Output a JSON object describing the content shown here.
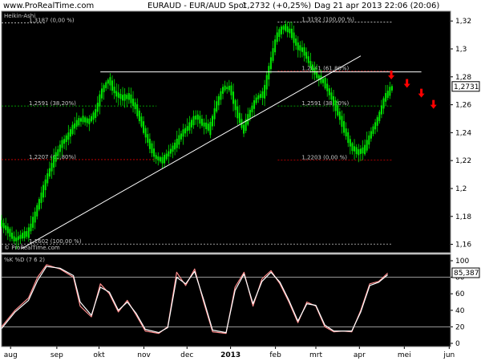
{
  "header": {
    "site": "www.ProRealTime.com",
    "instrument": "EURAUD - EUR/AUD Spot",
    "quote": "1,2732 (+0,25%)",
    "date": "Dag  21 apr 2013 22:06 (20:06)"
  },
  "chart_data": [
    {
      "type": "candlestick",
      "title": "Heikin-Ashi",
      "watermark": "© ProRealTime.com",
      "ylim": [
        1.154,
        1.327
      ],
      "y_ticks": [
        {
          "v": 1.32,
          "label": "1,32"
        },
        {
          "v": 1.3,
          "label": "1,3"
        },
        {
          "v": 1.28,
          "label": "1,28"
        },
        {
          "v": 1.26,
          "label": "1,26"
        },
        {
          "v": 1.24,
          "label": "1,24"
        },
        {
          "v": 1.22,
          "label": "1,22"
        },
        {
          "v": 1.2,
          "label": "1,2"
        },
        {
          "v": 1.18,
          "label": "1,18"
        },
        {
          "v": 1.16,
          "label": "1,16"
        }
      ],
      "price_tag": {
        "v": 1.2731,
        "label": "1,2731"
      },
      "x_months": [
        {
          "label": "aug",
          "frac": 0.02
        },
        {
          "label": "sep",
          "frac": 0.123
        },
        {
          "label": "okt",
          "frac": 0.217
        },
        {
          "label": "nov",
          "frac": 0.317
        },
        {
          "label": "dec",
          "frac": 0.413
        },
        {
          "label": "2013",
          "frac": 0.51
        },
        {
          "label": "feb",
          "frac": 0.61
        },
        {
          "label": "mrt",
          "frac": 0.7
        },
        {
          "label": "apr",
          "frac": 0.797
        },
        {
          "label": "mei",
          "frac": 0.897
        },
        {
          "label": "jun",
          "frac": 0.997
        }
      ],
      "price_path": [
        [
          0.0,
          1.175
        ],
        [
          0.015,
          1.17
        ],
        [
          0.03,
          1.163
        ],
        [
          0.045,
          1.166
        ],
        [
          0.06,
          1.168
        ],
        [
          0.075,
          1.18
        ],
        [
          0.09,
          1.195
        ],
        [
          0.105,
          1.21
        ],
        [
          0.12,
          1.222
        ],
        [
          0.135,
          1.232
        ],
        [
          0.15,
          1.238
        ],
        [
          0.165,
          1.246
        ],
        [
          0.18,
          1.25
        ],
        [
          0.195,
          1.248
        ],
        [
          0.21,
          1.254
        ],
        [
          0.225,
          1.27
        ],
        [
          0.24,
          1.278
        ],
        [
          0.255,
          1.268
        ],
        [
          0.27,
          1.265
        ],
        [
          0.285,
          1.266
        ],
        [
          0.3,
          1.258
        ],
        [
          0.315,
          1.245
        ],
        [
          0.33,
          1.232
        ],
        [
          0.345,
          1.222
        ],
        [
          0.36,
          1.22
        ],
        [
          0.375,
          1.226
        ],
        [
          0.39,
          1.232
        ],
        [
          0.405,
          1.24
        ],
        [
          0.42,
          1.245
        ],
        [
          0.435,
          1.252
        ],
        [
          0.45,
          1.246
        ],
        [
          0.465,
          1.243
        ],
        [
          0.48,
          1.26
        ],
        [
          0.495,
          1.272
        ],
        [
          0.51,
          1.272
        ],
        [
          0.525,
          1.255
        ],
        [
          0.54,
          1.242
        ],
        [
          0.555,
          1.255
        ],
        [
          0.57,
          1.265
        ],
        [
          0.585,
          1.268
        ],
        [
          0.6,
          1.29
        ],
        [
          0.615,
          1.31
        ],
        [
          0.63,
          1.316
        ],
        [
          0.645,
          1.312
        ],
        [
          0.66,
          1.302
        ],
        [
          0.675,
          1.298
        ],
        [
          0.69,
          1.288
        ],
        [
          0.705,
          1.28
        ],
        [
          0.72,
          1.276
        ],
        [
          0.735,
          1.266
        ],
        [
          0.75,
          1.255
        ],
        [
          0.765,
          1.242
        ],
        [
          0.78,
          1.23
        ],
        [
          0.795,
          1.226
        ],
        [
          0.81,
          1.228
        ],
        [
          0.825,
          1.24
        ],
        [
          0.84,
          1.25
        ],
        [
          0.855,
          1.265
        ],
        [
          0.87,
          1.272
        ]
      ],
      "fib_levels": [
        {
          "name": "fib-left-100",
          "v": 1.3187,
          "x1": 0.0,
          "x2": 0.1,
          "label": "1,3187 (0,00 %)",
          "color": "#c8c8c8"
        },
        {
          "name": "fib-left-382",
          "v": 1.2591,
          "x1": 0.0,
          "x2": 0.345,
          "label": "1,2591 (38,20%)",
          "color": "#00c800"
        },
        {
          "name": "fib-left-618",
          "v": 1.2207,
          "x1": 0.0,
          "x2": 0.345,
          "label": "1,2207 (61,80%)",
          "color": "#dc0000"
        },
        {
          "name": "fib-left-0",
          "v": 1.1602,
          "x1": 0.0,
          "x2": 0.87,
          "label": "1,1602 (100,00 %)",
          "color": "#c8c8c8"
        },
        {
          "name": "fib-right-100",
          "v": 1.3192,
          "x1": 0.615,
          "x2": 0.87,
          "label": "1,3192 (100,00 %)",
          "color": "#c8c8c8"
        },
        {
          "name": "fib-right-618",
          "v": 1.2841,
          "x1": 0.615,
          "x2": 0.87,
          "label": "1,2841 (61,80%)",
          "color": "#dc0000"
        },
        {
          "name": "fib-right-382",
          "v": 1.2591,
          "x1": 0.615,
          "x2": 0.87,
          "label": "1,2591 (38,20%)",
          "color": "#00c800"
        },
        {
          "name": "fib-right-0",
          "v": 1.2203,
          "x1": 0.615,
          "x2": 0.87,
          "label": "1,2203 (0,00 %)",
          "color": "#dc0000"
        }
      ],
      "resistance_line": {
        "v": 1.2835,
        "x1": 0.22,
        "x2": 0.935
      },
      "trend_line": {
        "p1": [
          0.045,
          1.157
        ],
        "p2": [
          0.8,
          1.295
        ]
      },
      "arrows": [
        [
          0.868,
          1.281
        ],
        [
          0.903,
          1.275
        ],
        [
          0.935,
          1.268
        ],
        [
          0.962,
          1.26
        ]
      ]
    },
    {
      "type": "line",
      "title": "%K %D (7 6 2)",
      "ylim": [
        0,
        100
      ],
      "y_ticks": [
        {
          "v": 100,
          "label": "100"
        },
        {
          "v": 80,
          "label": "80"
        },
        {
          "v": 60,
          "label": "60"
        },
        {
          "v": 40,
          "label": "40"
        },
        {
          "v": 20,
          "label": "20"
        },
        {
          "v": 0,
          "label": "0"
        }
      ],
      "ref_lines": [
        80,
        20
      ],
      "last_value": {
        "v": 85.387,
        "label": "85,387"
      },
      "series": [
        {
          "name": "%K",
          "color": "#ff8c8c",
          "points": [
            [
              0.0,
              20
            ],
            [
              0.03,
              40
            ],
            [
              0.06,
              55
            ],
            [
              0.08,
              80
            ],
            [
              0.1,
              95
            ],
            [
              0.13,
              90
            ],
            [
              0.16,
              80
            ],
            [
              0.175,
              45
            ],
            [
              0.2,
              32
            ],
            [
              0.22,
              72
            ],
            [
              0.24,
              60
            ],
            [
              0.26,
              38
            ],
            [
              0.28,
              52
            ],
            [
              0.3,
              34
            ],
            [
              0.32,
              15
            ],
            [
              0.35,
              12
            ],
            [
              0.37,
              20
            ],
            [
              0.39,
              86
            ],
            [
              0.41,
              70
            ],
            [
              0.43,
              90
            ],
            [
              0.45,
              50
            ],
            [
              0.47,
              14
            ],
            [
              0.5,
              12
            ],
            [
              0.52,
              68
            ],
            [
              0.54,
              86
            ],
            [
              0.56,
              45
            ],
            [
              0.58,
              78
            ],
            [
              0.6,
              88
            ],
            [
              0.62,
              72
            ],
            [
              0.64,
              50
            ],
            [
              0.66,
              25
            ],
            [
              0.68,
              50
            ],
            [
              0.7,
              45
            ],
            [
              0.72,
              20
            ],
            [
              0.74,
              14
            ],
            [
              0.76,
              15
            ],
            [
              0.78,
              14
            ],
            [
              0.8,
              40
            ],
            [
              0.82,
              72
            ],
            [
              0.84,
              75
            ],
            [
              0.86,
              85
            ]
          ]
        },
        {
          "name": "%D",
          "color": "#ffffff",
          "points": [
            [
              0.0,
              18
            ],
            [
              0.03,
              38
            ],
            [
              0.06,
              52
            ],
            [
              0.08,
              76
            ],
            [
              0.1,
              93
            ],
            [
              0.13,
              91
            ],
            [
              0.16,
              82
            ],
            [
              0.175,
              50
            ],
            [
              0.2,
              34
            ],
            [
              0.22,
              68
            ],
            [
              0.24,
              62
            ],
            [
              0.26,
              40
            ],
            [
              0.28,
              50
            ],
            [
              0.3,
              36
            ],
            [
              0.32,
              17
            ],
            [
              0.35,
              13
            ],
            [
              0.37,
              19
            ],
            [
              0.39,
              80
            ],
            [
              0.41,
              72
            ],
            [
              0.43,
              87
            ],
            [
              0.45,
              53
            ],
            [
              0.47,
              16
            ],
            [
              0.5,
              13
            ],
            [
              0.52,
              64
            ],
            [
              0.54,
              84
            ],
            [
              0.56,
              48
            ],
            [
              0.58,
              75
            ],
            [
              0.6,
              86
            ],
            [
              0.62,
              74
            ],
            [
              0.64,
              52
            ],
            [
              0.66,
              27
            ],
            [
              0.68,
              48
            ],
            [
              0.7,
              46
            ],
            [
              0.72,
              22
            ],
            [
              0.74,
              15
            ],
            [
              0.76,
              15
            ],
            [
              0.78,
              15
            ],
            [
              0.8,
              38
            ],
            [
              0.82,
              70
            ],
            [
              0.84,
              74
            ],
            [
              0.86,
              83
            ]
          ]
        }
      ]
    }
  ],
  "colors": {
    "background": "#000000",
    "candle": "#00e600",
    "grid": "#3c3c3c",
    "resistance": "#ffffff",
    "arrow": "#ff0000",
    "price_tag_bg": "#ffffff"
  }
}
